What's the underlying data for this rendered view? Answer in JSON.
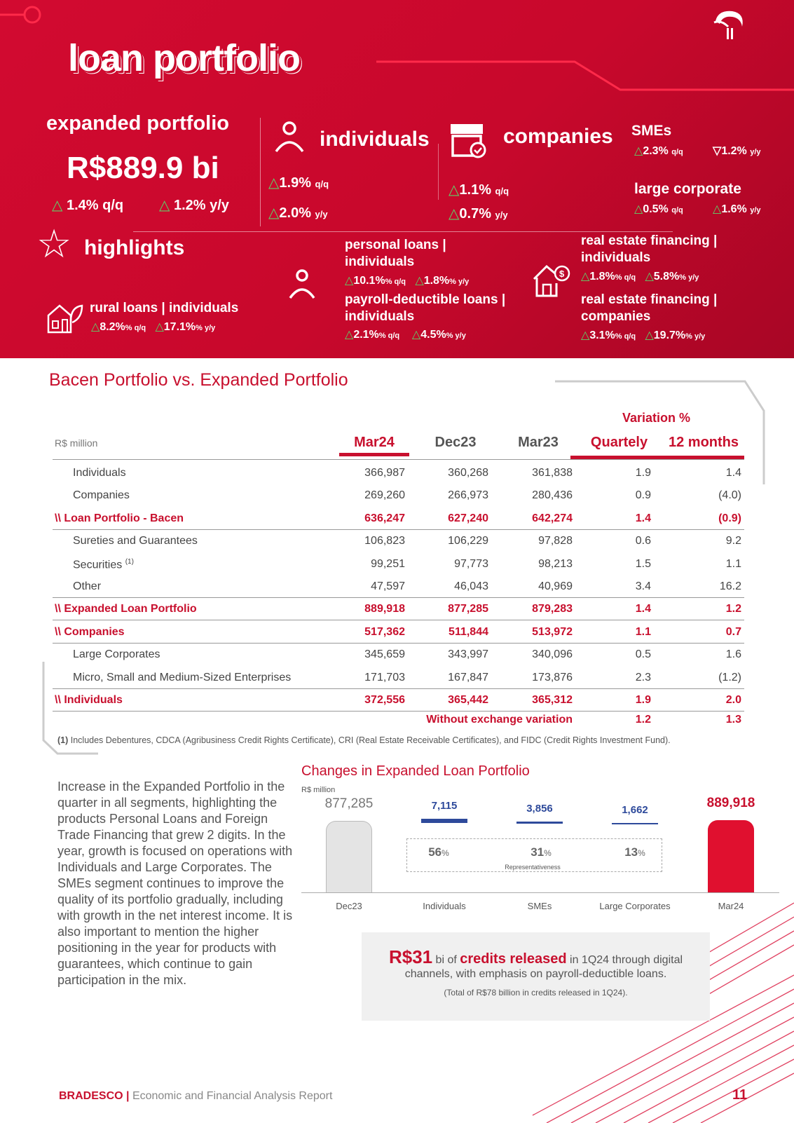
{
  "header": {
    "title": "loan portfolio",
    "expanded": {
      "label": "expanded portfolio",
      "value": "R$889.9 bi",
      "qq": "1.4% q/q",
      "yy": "1.2% y/y"
    },
    "individuals": {
      "label": "individuals",
      "qq": "1.9%",
      "qq_u": "q/q",
      "yy": "2.0%",
      "yy_u": "y/y"
    },
    "companies": {
      "label": "companies",
      "qq": "1.1%",
      "qq_u": "q/q",
      "yy": "0.7%",
      "yy_u": "y/y"
    },
    "smes": {
      "label": "SMEs",
      "qq": "2.3%",
      "qq_u": "q/q",
      "yy": "1.2%",
      "yy_u": "y/y"
    },
    "large": {
      "label": "large corporate",
      "qq": "0.5%",
      "qq_u": "q/q",
      "yy": "1.6%",
      "yy_u": "y/y"
    },
    "highlights": {
      "label": "highlights",
      "rural": {
        "label": "rural loans | individuals",
        "qq": "8.2%",
        "yy": "17.1%"
      },
      "personal": {
        "l1": "personal loans |",
        "l2": "individuals",
        "qq": "10.1%",
        "yy": "1.8%"
      },
      "payroll": {
        "l1": "payroll-deductible loans |",
        "l2": "individuals",
        "qq": "2.1%",
        "yy": "4.5%"
      },
      "re_ind": {
        "l1": "real estate financing |",
        "l2": "individuals",
        "qq": "1.8%",
        "yy": "5.8%"
      },
      "re_comp": {
        "l1": "real estate financing |",
        "l2": "companies",
        "qq": "3.1%",
        "yy": "19.7%"
      },
      "qq_u": "% q/q",
      "yy_u": "% y/y"
    }
  },
  "table": {
    "title": "Bacen Portfolio vs. Expanded Portfolio",
    "unit": "R$ million",
    "variation": "Variation %",
    "columns": [
      "Mar24",
      "Dec23",
      "Mar23",
      "Quartely",
      "12 months"
    ],
    "rows": [
      {
        "label": "Individuals",
        "v": [
          "366,987",
          "360,268",
          "361,838",
          "1.9",
          "1.4"
        ],
        "t": "i"
      },
      {
        "label": "Companies",
        "v": [
          "269,260",
          "266,973",
          "280,436",
          "0.9",
          "(4.0)"
        ],
        "t": "i"
      },
      {
        "label": "\\\\ Loan Portfolio - Bacen",
        "v": [
          "636,247",
          "627,240",
          "642,274",
          "1.4",
          "(0.9)"
        ],
        "t": "b"
      },
      {
        "label": "Sureties and Guarantees",
        "v": [
          "106,823",
          "106,229",
          "97,828",
          "0.6",
          "9.2"
        ],
        "t": "i"
      },
      {
        "label": "Securities",
        "sup": "(1)",
        "v": [
          "99,251",
          "97,773",
          "98,213",
          "1.5",
          "1.1"
        ],
        "t": "i"
      },
      {
        "label": "Other",
        "v": [
          "47,597",
          "46,043",
          "40,969",
          "3.4",
          "16.2"
        ],
        "t": "i"
      },
      {
        "label": "\\\\ Expanded Loan Portfolio",
        "v": [
          "889,918",
          "877,285",
          "879,283",
          "1.4",
          "1.2"
        ],
        "t": "b"
      },
      {
        "label": "\\\\ Companies",
        "v": [
          "517,362",
          "511,844",
          "513,972",
          "1.1",
          "0.7"
        ],
        "t": "b"
      },
      {
        "label": "Large Corporates",
        "v": [
          "345,659",
          "343,997",
          "340,096",
          "0.5",
          "1.6"
        ],
        "t": "i"
      },
      {
        "label": "Micro, Small and Medium-Sized Enterprises",
        "v": [
          "171,703",
          "167,847",
          "173,876",
          "2.3",
          "(1.2)"
        ],
        "t": "i"
      },
      {
        "label": "\\\\ Individuals",
        "v": [
          "372,556",
          "365,442",
          "365,312",
          "1.9",
          "2.0"
        ],
        "t": "b"
      }
    ],
    "without": {
      "label": "Without exchange variation",
      "q": "1.2",
      "y": "1.3"
    },
    "footnote_mark": "(1)",
    "footnote": " Includes Debentures, CDCA (Agribusiness Credit Rights Certificate), CRI (Real Estate Receivable Certificates), and FIDC (Credit Rights Investment Fund)."
  },
  "paragraph": "Increase in the Expanded Portfolio in the quarter in all segments, highlighting the products Personal Loans and Foreign Trade Financing that grew 2 digits. In the year, growth is focused on operations with Individuals and Large Corporates. The SMEs segment continues to improve the quality of its portfolio gradually, including with growth in the net interest income. It is also important to mention the higher positioning in the year for products with guarantees, which continue to gain participation in the mix.",
  "chart_data": {
    "type": "bar",
    "title": "Changes in Expanded Loan Portfolio",
    "ylabel": "R$ million",
    "categories": [
      "Dec23",
      "Individuals",
      "SMEs",
      "Large Corporates",
      "Mar24"
    ],
    "values": [
      877285,
      7115,
      3856,
      1662,
      889918
    ],
    "labels": [
      "877,285",
      "7,115",
      "3,856",
      "1,662",
      "889,918"
    ],
    "representativeness": {
      "label": "Representativeness",
      "values": [
        "56",
        "31",
        "13"
      ],
      "unit": "%"
    }
  },
  "callout": {
    "amount": "R$31",
    "t1": " bi of ",
    "bold": "credits released",
    "t2": " in 1Q24  through digital",
    "l2": "channels, with emphasis on payroll-deductible loans.",
    "l3": "(Total of R$78 billion in credits released in 1Q24)."
  },
  "footer": {
    "brand": "BRADESCO",
    "sep": " | ",
    "report": "Economic and Financial Analysis Report",
    "page": "11"
  },
  "colors": {
    "red": "#c8102e",
    "green": "#5fd068",
    "blue": "#2e4a9b"
  }
}
